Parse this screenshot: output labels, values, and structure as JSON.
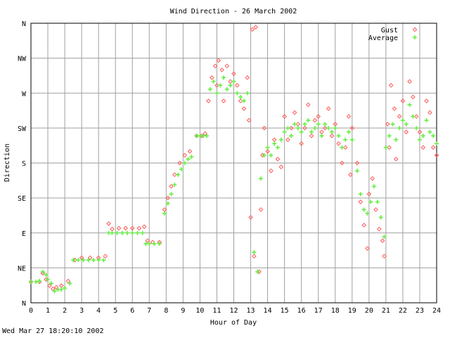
{
  "footer": "Wed Mar 27 18:20:10 2002",
  "chart_data": {
    "type": "scatter",
    "title": "Wind Direction - 26 March 2002",
    "xlabel": "Hour of Day",
    "ylabel": "Direction",
    "xlim": [
      0,
      24
    ],
    "ylim": [
      0,
      360
    ],
    "grid": true,
    "legend_placement": "top-right",
    "x_ticks": [
      "0",
      "1",
      "2",
      "3",
      "4",
      "5",
      "6",
      "7",
      "8",
      "9",
      "10",
      "11",
      "12",
      "13",
      "14",
      "15",
      "16",
      "17",
      "18",
      "19",
      "20",
      "21",
      "22",
      "23",
      "24"
    ],
    "y_ticks": [
      {
        "label": "N",
        "value": 0
      },
      {
        "label": "NE",
        "value": 45
      },
      {
        "label": "E",
        "value": 90
      },
      {
        "label": "SE",
        "value": 135
      },
      {
        "label": "S",
        "value": 180
      },
      {
        "label": "SW",
        "value": 225
      },
      {
        "label": "W",
        "value": 270
      },
      {
        "label": "NW",
        "value": 315
      },
      {
        "label": "N",
        "value": 360
      }
    ],
    "series": [
      {
        "name": "Gust",
        "marker": "◇",
        "color": "#ff5a5a",
        "points": [
          [
            0.0,
            27
          ],
          [
            0.5,
            27
          ],
          [
            0.7,
            38
          ],
          [
            0.9,
            30
          ],
          [
            1.1,
            22
          ],
          [
            1.3,
            18
          ],
          [
            1.5,
            20
          ],
          [
            1.8,
            22
          ],
          [
            2.2,
            28
          ],
          [
            2.6,
            55
          ],
          [
            3.0,
            58
          ],
          [
            3.5,
            58
          ],
          [
            4.0,
            58
          ],
          [
            4.4,
            60
          ],
          [
            4.6,
            102
          ],
          [
            4.8,
            95
          ],
          [
            5.2,
            96
          ],
          [
            5.6,
            96
          ],
          [
            6.0,
            96
          ],
          [
            6.4,
            96
          ],
          [
            6.7,
            98
          ],
          [
            6.9,
            80
          ],
          [
            7.2,
            78
          ],
          [
            7.6,
            78
          ],
          [
            7.9,
            120
          ],
          [
            8.1,
            135
          ],
          [
            8.3,
            150
          ],
          [
            8.5,
            165
          ],
          [
            8.8,
            180
          ],
          [
            9.1,
            190
          ],
          [
            9.4,
            195
          ],
          [
            9.8,
            215
          ],
          [
            10.1,
            215
          ],
          [
            10.3,
            218
          ],
          [
            10.5,
            260
          ],
          [
            10.7,
            290
          ],
          [
            10.9,
            305
          ],
          [
            11.0,
            280
          ],
          [
            11.1,
            312
          ],
          [
            11.3,
            300
          ],
          [
            11.4,
            260
          ],
          [
            11.6,
            305
          ],
          [
            11.8,
            285
          ],
          [
            12.0,
            295
          ],
          [
            12.2,
            280
          ],
          [
            12.4,
            260
          ],
          [
            12.6,
            250
          ],
          [
            12.8,
            290
          ],
          [
            12.9,
            235
          ],
          [
            13.0,
            110
          ],
          [
            13.1,
            352
          ],
          [
            13.2,
            60
          ],
          [
            13.3,
            355
          ],
          [
            13.5,
            40
          ],
          [
            13.6,
            120
          ],
          [
            13.7,
            190
          ],
          [
            13.8,
            225
          ],
          [
            14.0,
            195
          ],
          [
            14.2,
            170
          ],
          [
            14.4,
            210
          ],
          [
            14.6,
            185
          ],
          [
            14.8,
            175
          ],
          [
            15.0,
            240
          ],
          [
            15.2,
            210
          ],
          [
            15.4,
            225
          ],
          [
            15.6,
            245
          ],
          [
            15.8,
            230
          ],
          [
            16.0,
            205
          ],
          [
            16.2,
            225
          ],
          [
            16.4,
            255
          ],
          [
            16.6,
            215
          ],
          [
            16.8,
            235
          ],
          [
            17.0,
            240
          ],
          [
            17.2,
            220
          ],
          [
            17.4,
            225
          ],
          [
            17.6,
            250
          ],
          [
            17.8,
            215
          ],
          [
            18.0,
            230
          ],
          [
            18.2,
            205
          ],
          [
            18.4,
            180
          ],
          [
            18.6,
            200
          ],
          [
            18.8,
            240
          ],
          [
            18.9,
            165
          ],
          [
            19.0,
            225
          ],
          [
            19.3,
            180
          ],
          [
            19.5,
            130
          ],
          [
            19.7,
            100
          ],
          [
            19.9,
            70
          ],
          [
            20.0,
            140
          ],
          [
            20.2,
            160
          ],
          [
            20.4,
            120
          ],
          [
            20.6,
            95
          ],
          [
            20.8,
            80
          ],
          [
            20.9,
            60
          ],
          [
            21.1,
            230
          ],
          [
            21.2,
            200
          ],
          [
            21.3,
            280
          ],
          [
            21.5,
            250
          ],
          [
            21.6,
            185
          ],
          [
            21.8,
            240
          ],
          [
            22.0,
            260
          ],
          [
            22.2,
            220
          ],
          [
            22.4,
            285
          ],
          [
            22.6,
            265
          ],
          [
            22.8,
            240
          ],
          [
            23.0,
            220
          ],
          [
            23.2,
            200
          ],
          [
            23.4,
            260
          ],
          [
            23.6,
            245
          ],
          [
            23.8,
            200
          ],
          [
            24.0,
            190
          ]
        ]
      },
      {
        "name": "Average",
        "marker": "+",
        "color": "#66ee44",
        "points": [
          [
            0.0,
            27
          ],
          [
            0.3,
            27
          ],
          [
            0.5,
            28
          ],
          [
            0.7,
            40
          ],
          [
            0.9,
            36
          ],
          [
            1.0,
            30
          ],
          [
            1.2,
            25
          ],
          [
            1.4,
            15
          ],
          [
            1.6,
            17
          ],
          [
            1.8,
            17
          ],
          [
            2.0,
            19
          ],
          [
            2.3,
            25
          ],
          [
            2.5,
            55
          ],
          [
            2.8,
            55
          ],
          [
            3.1,
            55
          ],
          [
            3.4,
            55
          ],
          [
            3.7,
            55
          ],
          [
            4.0,
            55
          ],
          [
            4.3,
            55
          ],
          [
            4.6,
            90
          ],
          [
            4.8,
            90
          ],
          [
            5.1,
            90
          ],
          [
            5.4,
            90
          ],
          [
            5.7,
            90
          ],
          [
            6.0,
            90
          ],
          [
            6.3,
            90
          ],
          [
            6.6,
            90
          ],
          [
            6.8,
            76
          ],
          [
            7.0,
            76
          ],
          [
            7.3,
            76
          ],
          [
            7.6,
            76
          ],
          [
            7.9,
            115
          ],
          [
            8.1,
            128
          ],
          [
            8.3,
            140
          ],
          [
            8.5,
            152
          ],
          [
            8.7,
            165
          ],
          [
            8.9,
            172
          ],
          [
            9.1,
            180
          ],
          [
            9.3,
            185
          ],
          [
            9.5,
            188
          ],
          [
            9.8,
            215
          ],
          [
            10.0,
            215
          ],
          [
            10.2,
            215
          ],
          [
            10.4,
            215
          ],
          [
            10.6,
            275
          ],
          [
            10.8,
            285
          ],
          [
            11.0,
            270
          ],
          [
            11.2,
            280
          ],
          [
            11.4,
            290
          ],
          [
            11.6,
            275
          ],
          [
            11.8,
            280
          ],
          [
            12.0,
            285
          ],
          [
            12.2,
            270
          ],
          [
            12.4,
            265
          ],
          [
            12.6,
            260
          ],
          [
            12.8,
            270
          ],
          [
            13.2,
            65
          ],
          [
            13.4,
            40
          ],
          [
            13.6,
            160
          ],
          [
            13.8,
            190
          ],
          [
            14.0,
            200
          ],
          [
            14.2,
            190
          ],
          [
            14.4,
            205
          ],
          [
            14.6,
            200
          ],
          [
            14.8,
            210
          ],
          [
            15.0,
            220
          ],
          [
            15.2,
            225
          ],
          [
            15.4,
            215
          ],
          [
            15.6,
            230
          ],
          [
            15.8,
            225
          ],
          [
            16.0,
            220
          ],
          [
            16.2,
            230
          ],
          [
            16.4,
            235
          ],
          [
            16.6,
            220
          ],
          [
            16.8,
            225
          ],
          [
            17.0,
            230
          ],
          [
            17.2,
            215
          ],
          [
            17.4,
            230
          ],
          [
            17.6,
            225
          ],
          [
            17.8,
            220
          ],
          [
            18.0,
            225
          ],
          [
            18.2,
            215
          ],
          [
            18.4,
            200
          ],
          [
            18.6,
            210
          ],
          [
            18.8,
            220
          ],
          [
            19.0,
            210
          ],
          [
            19.3,
            170
          ],
          [
            19.5,
            140
          ],
          [
            19.7,
            120
          ],
          [
            19.9,
            115
          ],
          [
            20.1,
            130
          ],
          [
            20.3,
            150
          ],
          [
            20.5,
            130
          ],
          [
            20.7,
            110
          ],
          [
            20.9,
            85
          ],
          [
            21.0,
            200
          ],
          [
            21.2,
            215
          ],
          [
            21.4,
            230
          ],
          [
            21.6,
            210
          ],
          [
            21.8,
            225
          ],
          [
            22.0,
            235
          ],
          [
            22.2,
            230
          ],
          [
            22.4,
            255
          ],
          [
            22.6,
            240
          ],
          [
            22.8,
            225
          ],
          [
            23.0,
            210
          ],
          [
            23.2,
            215
          ],
          [
            23.4,
            235
          ],
          [
            23.6,
            220
          ],
          [
            23.8,
            215
          ],
          [
            24.0,
            205
          ]
        ]
      }
    ]
  }
}
